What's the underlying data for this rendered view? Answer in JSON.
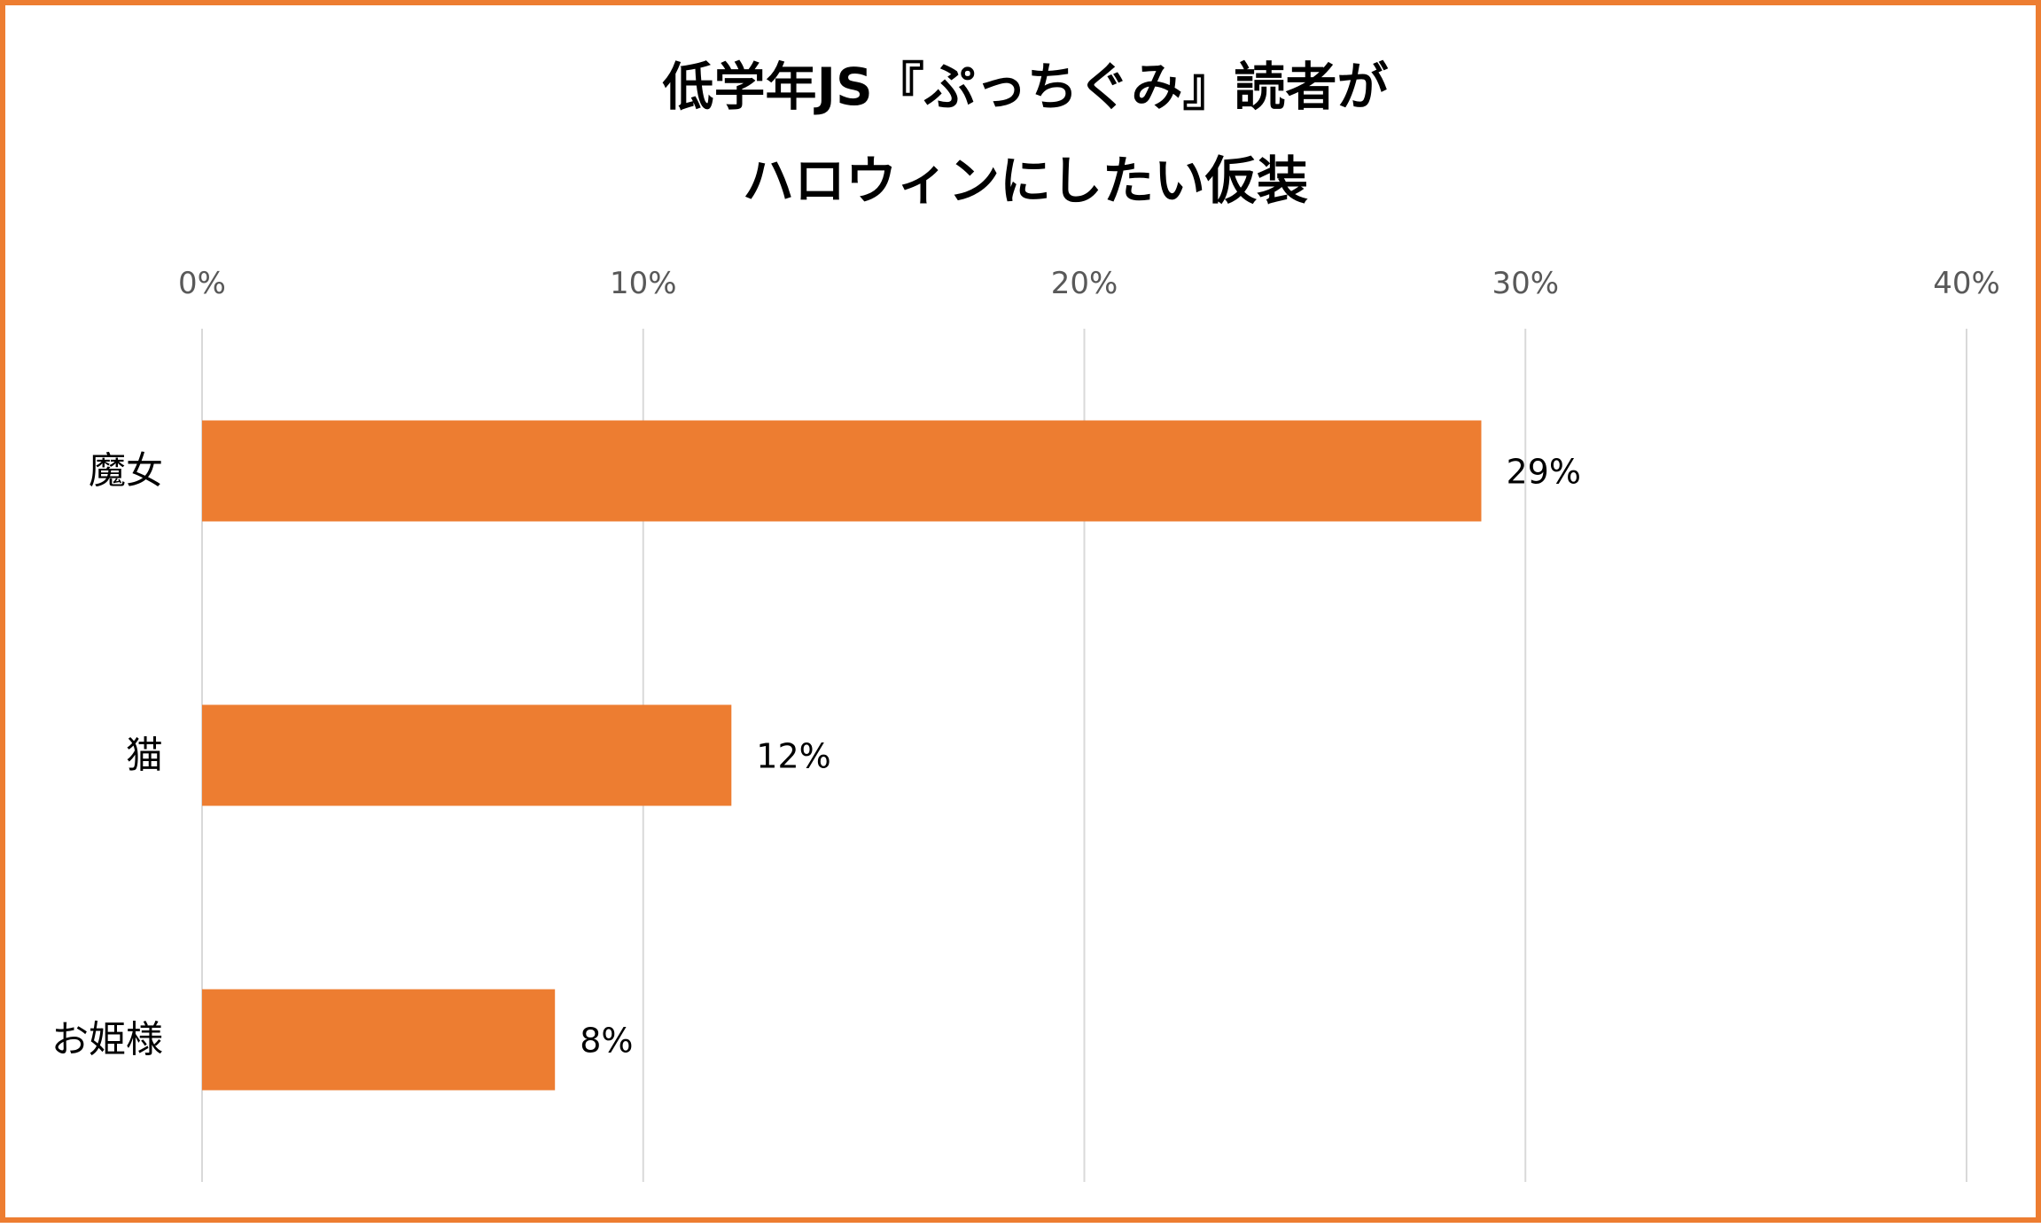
{
  "chart_data": {
    "type": "bar",
    "orientation": "horizontal",
    "title_lines": [
      "低学年JS『ぷっちぐみ』読者が",
      "ハロウィンにしたい仮装"
    ],
    "categories": [
      "魔女",
      "猫",
      "お姫様"
    ],
    "values": [
      29,
      12,
      8
    ],
    "data_labels": [
      "29%",
      "12%",
      "8%"
    ],
    "xlim": [
      0,
      40
    ],
    "x_ticks": [
      0,
      10,
      20,
      30,
      40
    ],
    "x_tick_labels": [
      "0%",
      "10%",
      "20%",
      "30%",
      "40%"
    ],
    "x_axis_position": "top",
    "grid": true,
    "legend": "none",
    "colors": {
      "bar": "#ED7D31",
      "border": "#ED7D31",
      "grid": "#D9D9D9"
    }
  }
}
